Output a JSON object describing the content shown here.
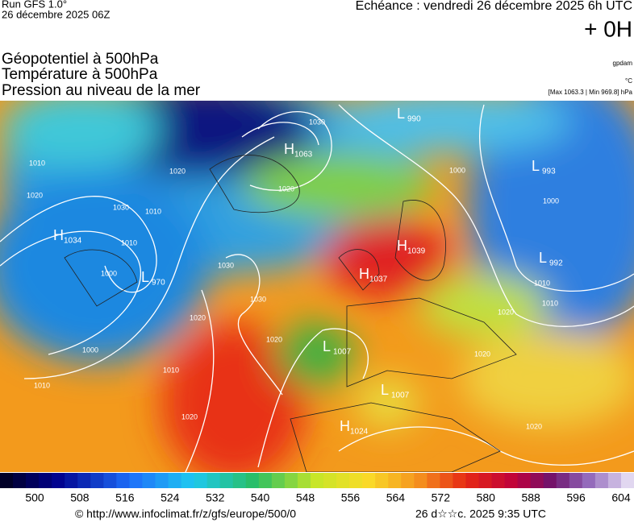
{
  "header": {
    "run": "Run GFS 1.0°",
    "run_date": "26 décembre 2025 06Z",
    "echeance": "Echéance : vendredi 26 décembre 2025 6h UTC",
    "offset": "+ 0H"
  },
  "fields": [
    "Géopotentiel à 500hPa",
    "Température à 500hPa",
    "Pression au niveau de la mer"
  ],
  "units": {
    "geopotential": "gpdam",
    "temperature": "°C",
    "pressure": "[Max 1063.3 | Min 969.8] hPa"
  },
  "centers": [
    {
      "letter": "H",
      "pressure": "1063"
    },
    {
      "letter": "H",
      "pressure": "1034"
    },
    {
      "letter": "L",
      "pressure": "970"
    },
    {
      "letter": "L",
      "pressure": "990"
    },
    {
      "letter": "L",
      "pressure": "993"
    },
    {
      "letter": "L",
      "pressure": "992"
    },
    {
      "letter": "H",
      "pressure": "1039"
    },
    {
      "letter": "H",
      "pressure": "1037"
    },
    {
      "letter": "L",
      "pressure": "1007"
    },
    {
      "letter": "L",
      "pressure": "1007"
    },
    {
      "letter": "H",
      "pressure": "1024"
    }
  ],
  "isobar_labels": [
    "1030",
    "1020",
    "1010",
    "1020",
    "1030",
    "1010",
    "1000",
    "1010",
    "1020",
    "1030",
    "1030",
    "1020",
    "1010",
    "1000",
    "1020",
    "1010",
    "1020",
    "1000",
    "1000",
    "1010",
    "1010",
    "1020",
    "1020",
    "1020"
  ],
  "scale": [
    500,
    508,
    516,
    524,
    532,
    540,
    548,
    556,
    564,
    572,
    580,
    588,
    596,
    604
  ],
  "footer": {
    "url": "© http://www.infoclimat.fr/z/gfs/europe/500/0",
    "time": "26 d☆☆c. 2025  9:35 UTC"
  }
}
